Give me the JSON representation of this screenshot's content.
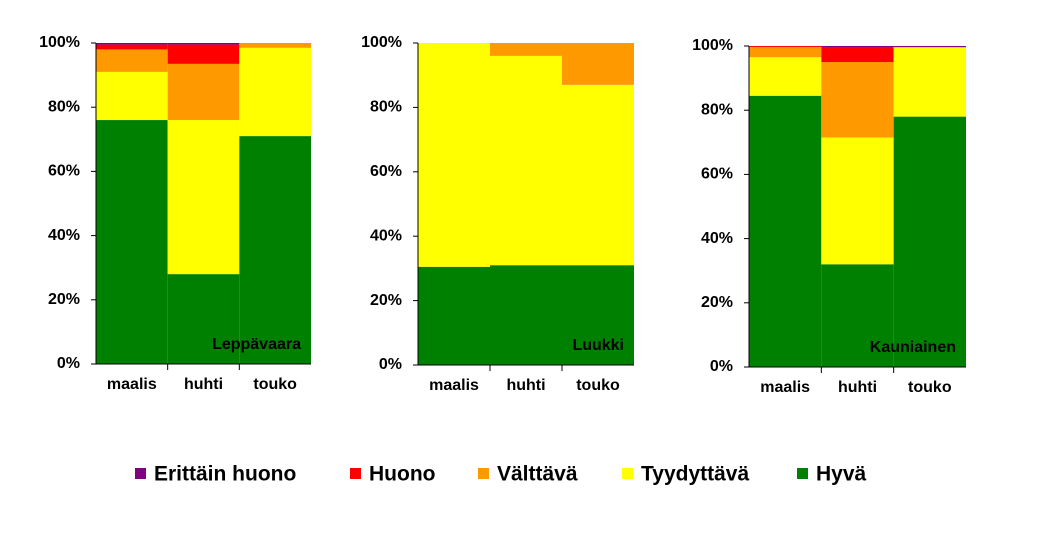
{
  "chart_data": [
    {
      "type": "stacked-bar",
      "title": "Leppävaara",
      "categories": [
        "maalis",
        "huhti",
        "touko"
      ],
      "series": [
        {
          "values": [
            76,
            28,
            71
          ]
        },
        {
          "values": [
            15,
            48,
            27.5
          ]
        },
        {
          "values": [
            7,
            17.5,
            1.5
          ]
        },
        {
          "values": [
            1.5,
            6,
            0
          ]
        },
        {
          "values": [
            0.5,
            0.5,
            0
          ]
        }
      ],
      "ylim": [
        0,
        100
      ],
      "yticks": [
        {
          "value": 0,
          "label": "0%"
        },
        {
          "value": 20,
          "label": "20%"
        },
        {
          "value": 40,
          "label": "40%"
        },
        {
          "value": 60,
          "label": "60%"
        },
        {
          "value": 80,
          "label": "80%"
        },
        {
          "value": 100,
          "label": "100%"
        }
      ]
    },
    {
      "type": "stacked-bar",
      "title": "Luukki",
      "categories": [
        "maalis",
        "huhti",
        "touko"
      ],
      "series": [
        {
          "values": [
            30.5,
            31,
            31
          ]
        },
        {
          "values": [
            69.5,
            65,
            56
          ]
        },
        {
          "values": [
            0,
            4,
            13
          ]
        },
        {
          "values": [
            0,
            0,
            0
          ]
        },
        {
          "values": [
            0,
            0,
            0
          ]
        }
      ],
      "ylim": [
        0,
        100
      ],
      "yticks": [
        {
          "value": 0,
          "label": "0%"
        },
        {
          "value": 20,
          "label": "20%"
        },
        {
          "value": 40,
          "label": "40%"
        },
        {
          "value": 60,
          "label": "60%"
        },
        {
          "value": 80,
          "label": "80%"
        },
        {
          "value": 100,
          "label": "100%"
        }
      ]
    },
    {
      "type": "stacked-bar",
      "title": "Kauniainen",
      "categories": [
        "maalis",
        "huhti",
        "touko"
      ],
      "series": [
        {
          "values": [
            84.5,
            32,
            78
          ]
        },
        {
          "values": [
            12,
            39.5,
            21.5
          ]
        },
        {
          "values": [
            3.2,
            23.5,
            0.2
          ]
        },
        {
          "values": [
            0.3,
            4.5,
            0
          ]
        },
        {
          "values": [
            0,
            0.5,
            0.3
          ]
        }
      ],
      "ylim": [
        0,
        100
      ],
      "yticks": [
        {
          "value": 0,
          "label": "0%"
        },
        {
          "value": 20,
          "label": "20%"
        },
        {
          "value": 40,
          "label": "40%"
        },
        {
          "value": 60,
          "label": "60%"
        },
        {
          "value": 80,
          "label": "80%"
        },
        {
          "value": 100,
          "label": "100%"
        }
      ]
    }
  ],
  "legend": [
    {
      "name": "Hyvä",
      "color": "#008000"
    },
    {
      "name": "Tyydyttävä",
      "color": "#ffff00"
    },
    {
      "name": "Välttävä",
      "color": "#ff9900"
    },
    {
      "name": "Huono",
      "color": "#ff0000"
    },
    {
      "name": "Erittäin huono",
      "color": "#800080"
    }
  ]
}
